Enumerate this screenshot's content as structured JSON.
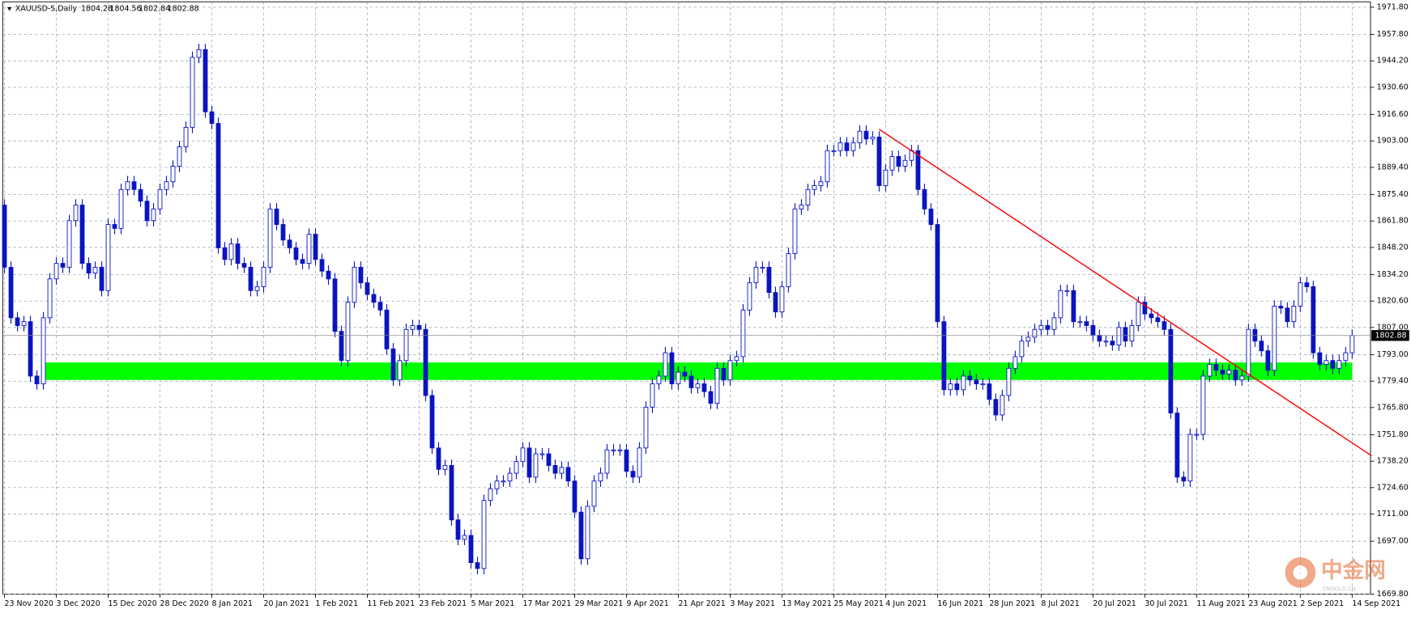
{
  "chart_data": {
    "type": "candlestick",
    "title": "XAUUSD-S,Daily",
    "quote": [
      1804.28,
      1804.56,
      1802.84,
      1802.88
    ],
    "categories": [
      "23 Nov 2020",
      null,
      null,
      null,
      null,
      null,
      null,
      null,
      "3 Dec 2020",
      null,
      null,
      null,
      null,
      null,
      null,
      null,
      "15 Dec 2020",
      null,
      null,
      null,
      null,
      null,
      null,
      null,
      "28 Dec 2020",
      null,
      null,
      null,
      null,
      null,
      null,
      null,
      "8 Jan 2021",
      null,
      null,
      null,
      null,
      null,
      null,
      null,
      "20 Jan 2021",
      null,
      null,
      null,
      null,
      null,
      null,
      null,
      "1 Feb 2021",
      null,
      null,
      null,
      null,
      null,
      null,
      null,
      "11 Feb 2021",
      null,
      null,
      null,
      null,
      null,
      null,
      null,
      "23 Feb 2021",
      null,
      null,
      null,
      null,
      null,
      null,
      null,
      "5 Mar 2021",
      null,
      null,
      null,
      null,
      null,
      null,
      null,
      "17 Mar 2021",
      null,
      null,
      null,
      null,
      null,
      null,
      null,
      "29 Mar 2021",
      null,
      null,
      null,
      null,
      null,
      null,
      null,
      "9 Apr 2021",
      null,
      null,
      null,
      null,
      null,
      null,
      null,
      "21 Apr 2021",
      null,
      null,
      null,
      null,
      null,
      null,
      null,
      "3 May 2021",
      null,
      null,
      null,
      null,
      null,
      null,
      null,
      "13 May 2021",
      null,
      null,
      null,
      null,
      null,
      null,
      null,
      "25 May 2021",
      null,
      null,
      null,
      null,
      null,
      null,
      null,
      "4 Jun 2021",
      null,
      null,
      null,
      null,
      null,
      null,
      null,
      "16 Jun 2021",
      null,
      null,
      null,
      null,
      null,
      null,
      null,
      "28 Jun 2021",
      null,
      null,
      null,
      null,
      null,
      null,
      null,
      "8 Jul 2021",
      null,
      null,
      null,
      null,
      null,
      null,
      null,
      "20 Jul 2021",
      null,
      null,
      null,
      null,
      null,
      null,
      null,
      "30 Jul 2021",
      null,
      null,
      null,
      null,
      null,
      null,
      null,
      "11 Aug 2021",
      null,
      null,
      null,
      null,
      null,
      null,
      null,
      "23 Aug 2021",
      null,
      null,
      null,
      null,
      null,
      null,
      null,
      "2 Sep 2021",
      null,
      null,
      null,
      null,
      null,
      null,
      null,
      "14 Sep 2021"
    ],
    "open": [
      1870,
      1838,
      1812,
      1808,
      1810,
      1782,
      1778,
      1812,
      1832,
      1840,
      1838,
      1862,
      1870,
      1840,
      1835,
      1838,
      1826,
      1860,
      1858,
      1878,
      1882,
      1878,
      1872,
      1862,
      1868,
      1878,
      1882,
      1890,
      1900,
      1910,
      1946,
      1950,
      1918,
      1912,
      1848,
      1842,
      1850,
      1840,
      1838,
      1826,
      1828,
      1838,
      1868,
      1860,
      1852,
      1848,
      1842,
      1840,
      1855,
      1842,
      1836,
      1832,
      1805,
      1790,
      1820,
      1838,
      1830,
      1824,
      1820,
      1816,
      1796,
      1780,
      1790,
      1806,
      1808,
      1806,
      1772,
      1745,
      1734,
      1736,
      1708,
      1698,
      1700,
      1686,
      1683,
      1718,
      1724,
      1728,
      1728,
      1732,
      1738,
      1745,
      1730,
      1742,
      1742,
      1736,
      1732,
      1735,
      1728,
      1712,
      1688,
      1715,
      1728,
      1732,
      1744,
      1744,
      1744,
      1733,
      1730,
      1745,
      1766,
      1778,
      1782,
      1794,
      1778,
      1784,
      1782,
      1776,
      1778,
      1774,
      1768,
      1786,
      1780,
      1790,
      1792,
      1816,
      1830,
      1838,
      1838,
      1825,
      1815,
      1828,
      1845,
      1868,
      1870,
      1878,
      1880,
      1882,
      1898,
      1898,
      1902,
      1898,
      1902,
      1908,
      1904,
      1905,
      1880,
      1888,
      1895,
      1890,
      1893,
      1898,
      1878,
      1868,
      1860,
      1810,
      1775,
      1778,
      1775,
      1782,
      1780,
      1778,
      1778,
      1770,
      1762,
      1772,
      1786,
      1792,
      1800,
      1802,
      1806,
      1808,
      1806,
      1812,
      1826,
      1826,
      1810,
      1810,
      1808,
      1803,
      1800,
      1800,
      1798,
      1807,
      1800,
      1808,
      1820,
      1814,
      1812,
      1810,
      1806,
      1763,
      1730,
      1728,
      1752,
      1752,
      1782,
      1788,
      1785,
      1783,
      1785,
      1780,
      1782,
      1806,
      1800,
      1795,
      1785,
      1818,
      1817,
      1810,
      1818,
      1830,
      1828,
      1794,
      1788,
      1790,
      1786,
      1790,
      1794
    ],
    "high": [
      1873,
      1841,
      1815,
      1813,
      1813,
      1785,
      1815,
      1835,
      1843,
      1843,
      1865,
      1873,
      1873,
      1843,
      1841,
      1841,
      1863,
      1863,
      1881,
      1885,
      1885,
      1881,
      1875,
      1871,
      1881,
      1885,
      1893,
      1903,
      1913,
      1949,
      1953,
      1953,
      1921,
      1915,
      1851,
      1853,
      1853,
      1843,
      1841,
      1831,
      1841,
      1871,
      1871,
      1863,
      1855,
      1851,
      1845,
      1858,
      1858,
      1845,
      1839,
      1835,
      1808,
      1823,
      1841,
      1841,
      1833,
      1827,
      1823,
      1819,
      1799,
      1793,
      1809,
      1811,
      1811,
      1809,
      1775,
      1748,
      1739,
      1739,
      1711,
      1703,
      1703,
      1689,
      1721,
      1727,
      1731,
      1731,
      1735,
      1741,
      1748,
      1748,
      1745,
      1745,
      1745,
      1739,
      1738,
      1738,
      1731,
      1715,
      1718,
      1731,
      1735,
      1747,
      1747,
      1747,
      1747,
      1736,
      1748,
      1769,
      1781,
      1785,
      1797,
      1797,
      1787,
      1787,
      1785,
      1781,
      1781,
      1777,
      1789,
      1789,
      1793,
      1795,
      1819,
      1833,
      1841,
      1841,
      1841,
      1828,
      1831,
      1848,
      1871,
      1873,
      1881,
      1883,
      1885,
      1901,
      1901,
      1905,
      1905,
      1905,
      1911,
      1911,
      1908,
      1908,
      1891,
      1898,
      1898,
      1896,
      1901,
      1901,
      1881,
      1871,
      1863,
      1813,
      1781,
      1781,
      1785,
      1785,
      1783,
      1781,
      1781,
      1773,
      1775,
      1789,
      1795,
      1803,
      1805,
      1809,
      1811,
      1811,
      1815,
      1829,
      1829,
      1829,
      1813,
      1813,
      1811,
      1806,
      1803,
      1803,
      1810,
      1810,
      1811,
      1823,
      1823,
      1817,
      1815,
      1813,
      1809,
      1766,
      1733,
      1755,
      1755,
      1785,
      1791,
      1791,
      1788,
      1788,
      1788,
      1785,
      1809,
      1809,
      1803,
      1798,
      1821,
      1821,
      1820,
      1821,
      1833,
      1833,
      1831,
      1797,
      1793,
      1793,
      1793,
      1797,
      1806
    ],
    "low": [
      1835,
      1809,
      1805,
      1805,
      1779,
      1775,
      1775,
      1809,
      1829,
      1835,
      1835,
      1859,
      1837,
      1832,
      1832,
      1823,
      1823,
      1855,
      1855,
      1875,
      1875,
      1869,
      1859,
      1859,
      1865,
      1875,
      1879,
      1887,
      1897,
      1907,
      1943,
      1915,
      1909,
      1845,
      1839,
      1839,
      1837,
      1835,
      1823,
      1823,
      1825,
      1835,
      1857,
      1849,
      1845,
      1839,
      1837,
      1837,
      1839,
      1833,
      1829,
      1802,
      1787,
      1787,
      1817,
      1827,
      1821,
      1817,
      1813,
      1793,
      1777,
      1777,
      1787,
      1803,
      1803,
      1769,
      1742,
      1731,
      1731,
      1705,
      1695,
      1695,
      1683,
      1680,
      1680,
      1715,
      1721,
      1725,
      1725,
      1729,
      1735,
      1727,
      1727,
      1739,
      1733,
      1729,
      1729,
      1725,
      1709,
      1685,
      1685,
      1712,
      1725,
      1729,
      1741,
      1741,
      1730,
      1727,
      1727,
      1742,
      1763,
      1775,
      1779,
      1775,
      1775,
      1779,
      1773,
      1773,
      1771,
      1765,
      1765,
      1777,
      1777,
      1787,
      1789,
      1813,
      1827,
      1835,
      1822,
      1812,
      1812,
      1825,
      1842,
      1865,
      1867,
      1875,
      1877,
      1879,
      1895,
      1895,
      1895,
      1895,
      1899,
      1901,
      1901,
      1877,
      1877,
      1885,
      1887,
      1887,
      1890,
      1875,
      1865,
      1857,
      1807,
      1772,
      1772,
      1772,
      1772,
      1777,
      1775,
      1775,
      1767,
      1759,
      1759,
      1769,
      1783,
      1789,
      1797,
      1799,
      1803,
      1803,
      1803,
      1809,
      1823,
      1807,
      1807,
      1805,
      1800,
      1797,
      1797,
      1795,
      1795,
      1797,
      1797,
      1805,
      1811,
      1809,
      1807,
      1803,
      1760,
      1727,
      1725,
      1725,
      1749,
      1749,
      1779,
      1782,
      1780,
      1780,
      1777,
      1777,
      1779,
      1797,
      1792,
      1782,
      1782,
      1814,
      1807,
      1807,
      1815,
      1825,
      1791,
      1785,
      1785,
      1783,
      1783,
      1787,
      1791
    ],
    "close": [
      1838,
      1812,
      1808,
      1810,
      1782,
      1778,
      1812,
      1832,
      1840,
      1838,
      1862,
      1870,
      1840,
      1835,
      1838,
      1826,
      1860,
      1858,
      1878,
      1882,
      1878,
      1872,
      1862,
      1868,
      1878,
      1882,
      1890,
      1900,
      1910,
      1946,
      1950,
      1918,
      1912,
      1848,
      1842,
      1850,
      1840,
      1838,
      1826,
      1828,
      1838,
      1868,
      1860,
      1852,
      1848,
      1842,
      1840,
      1855,
      1842,
      1836,
      1832,
      1805,
      1790,
      1820,
      1838,
      1830,
      1824,
      1820,
      1816,
      1796,
      1780,
      1790,
      1806,
      1808,
      1806,
      1772,
      1745,
      1734,
      1736,
      1708,
      1698,
      1700,
      1686,
      1683,
      1718,
      1724,
      1728,
      1728,
      1732,
      1738,
      1745,
      1730,
      1742,
      1742,
      1736,
      1732,
      1735,
      1728,
      1712,
      1688,
      1715,
      1728,
      1732,
      1744,
      1744,
      1744,
      1733,
      1730,
      1745,
      1766,
      1778,
      1782,
      1794,
      1778,
      1784,
      1782,
      1776,
      1778,
      1774,
      1768,
      1786,
      1780,
      1790,
      1792,
      1816,
      1830,
      1838,
      1838,
      1825,
      1815,
      1828,
      1845,
      1868,
      1870,
      1878,
      1880,
      1882,
      1898,
      1898,
      1902,
      1898,
      1902,
      1908,
      1904,
      1905,
      1880,
      1888,
      1895,
      1890,
      1893,
      1898,
      1878,
      1868,
      1860,
      1810,
      1775,
      1778,
      1775,
      1782,
      1780,
      1778,
      1778,
      1770,
      1762,
      1772,
      1786,
      1792,
      1800,
      1802,
      1806,
      1808,
      1806,
      1812,
      1826,
      1826,
      1810,
      1810,
      1808,
      1803,
      1800,
      1800,
      1798,
      1807,
      1800,
      1808,
      1820,
      1814,
      1812,
      1810,
      1806,
      1763,
      1730,
      1728,
      1752,
      1752,
      1782,
      1788,
      1785,
      1783,
      1785,
      1780,
      1782,
      1806,
      1800,
      1795,
      1785,
      1818,
      1817,
      1810,
      1818,
      1830,
      1828,
      1794,
      1788,
      1790,
      1786,
      1790,
      1794,
      1802.88
    ],
    "colors": {
      "wick": "#0a14c0",
      "up_body": "#ffffff",
      "down_body": "#0a14c0"
    },
    "ylim": [
      1669.8,
      1974.6
    ],
    "yticks": [
      {
        "value": 1971.8,
        "label": "1971.80"
      },
      {
        "value": 1957.8,
        "label": "1957.80"
      },
      {
        "value": 1944.2,
        "label": "1944.20"
      },
      {
        "value": 1930.6,
        "label": "1930.60"
      },
      {
        "value": 1916.6,
        "label": "1916.60"
      },
      {
        "value": 1903,
        "label": "1903.00"
      },
      {
        "value": 1889.4,
        "label": "1889.40"
      },
      {
        "value": 1875.4,
        "label": "1875.40"
      },
      {
        "value": 1861.8,
        "label": "1861.80"
      },
      {
        "value": 1848.2,
        "label": "1848.20"
      },
      {
        "value": 1834.2,
        "label": "1834.20"
      },
      {
        "value": 1820.6,
        "label": "1820.60"
      },
      {
        "value": 1807,
        "label": "1807.00"
      },
      {
        "value": 1793,
        "label": "1793.00"
      },
      {
        "value": 1779.4,
        "label": "1779.40"
      },
      {
        "value": 1765.8,
        "label": "1765.80"
      },
      {
        "value": 1751.8,
        "label": "1751.80"
      },
      {
        "value": 1738.2,
        "label": "1738.20"
      },
      {
        "value": 1724.6,
        "label": "1724.60"
      },
      {
        "value": 1711,
        "label": "1711.00"
      },
      {
        "value": 1697,
        "label": "1697.00"
      },
      {
        "value": 1669.8,
        "label": "1669.80"
      }
    ],
    "grid": true,
    "zone": {
      "low": 1780,
      "high": 1789,
      "x": [
        6,
        208
      ],
      "color": "#00ff00"
    },
    "trendline": {
      "x": [
        135,
        211
      ],
      "y": [
        1909,
        1741
      ],
      "color": "#ff0000"
    },
    "watermark": {
      "title": "中金网",
      "url": "CNGOLD.CN"
    }
  }
}
